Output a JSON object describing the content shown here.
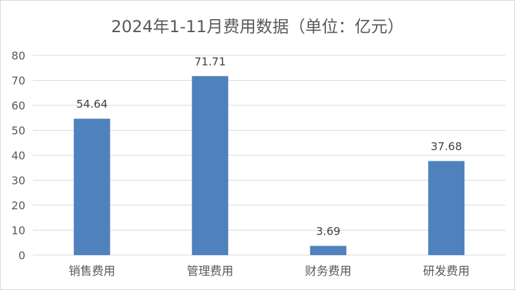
{
  "chart_data": {
    "type": "bar",
    "title": "2024年1-11月费用数据（单位：亿元）",
    "categories": [
      "销售费用",
      "管理费用",
      "财务费用",
      "研发费用"
    ],
    "values": [
      54.64,
      71.71,
      3.69,
      37.68
    ],
    "data_labels": [
      "54.64",
      "71.71",
      "3.69",
      "37.68"
    ],
    "ylim": [
      0,
      80
    ],
    "yticks": [
      "0",
      "10",
      "20",
      "30",
      "40",
      "50",
      "60",
      "70",
      "80"
    ],
    "grid": true,
    "legend": "none",
    "bar_color": "#4f81bd",
    "grid_color": "#d9d9d9"
  }
}
